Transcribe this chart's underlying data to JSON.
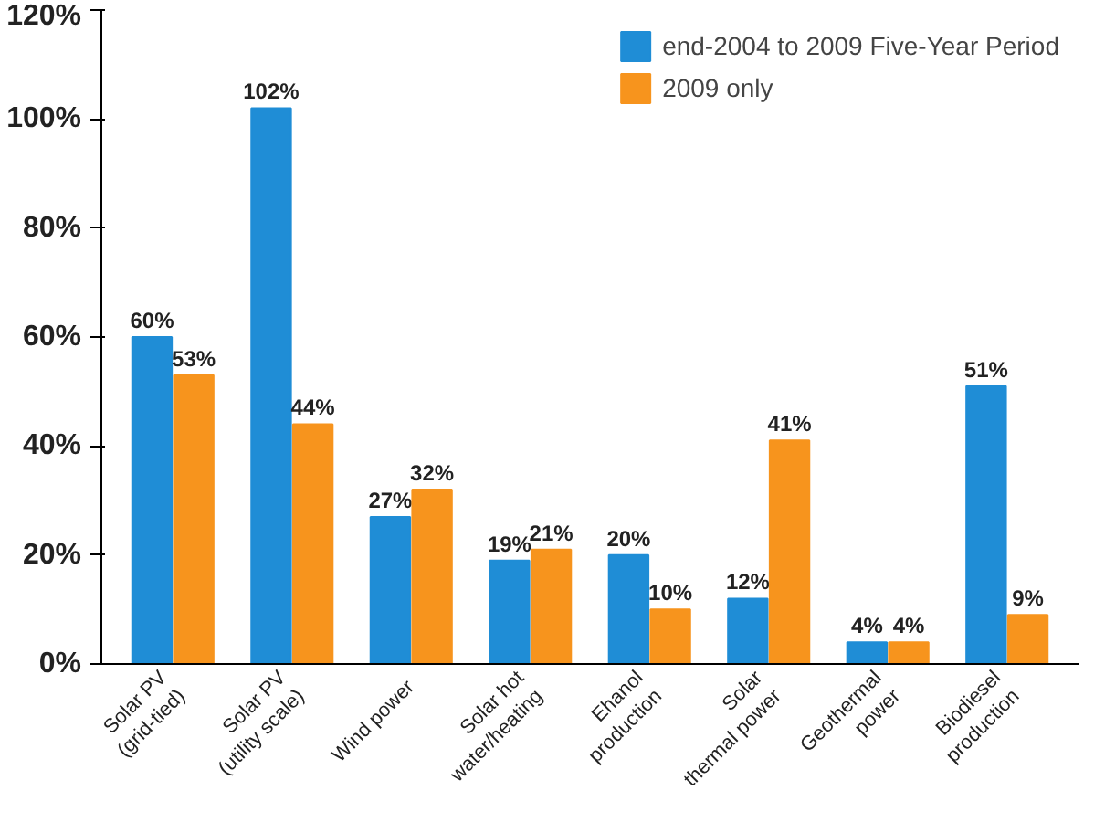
{
  "chart_data": {
    "type": "bar",
    "categories": [
      "Solar PV\n(grid-tied)",
      "Solar PV\n(utility scale)",
      "Wind power",
      "Solar hot\nwater/heating",
      "Ehanol\nproduction",
      "Solar\nthermal power",
      "Geothermal\npower",
      "Biodiesel\nproduction"
    ],
    "series": [
      {
        "name": "end-2004 to 2009 Five-Year Period",
        "color": "#1f8dd6",
        "values": [
          60,
          102,
          27,
          19,
          20,
          12,
          4,
          51
        ],
        "value_labels": [
          "60%",
          "102%",
          "27%",
          "19%",
          "20%",
          "12%",
          "4%",
          "51%"
        ]
      },
      {
        "name": "2009 only",
        "color": "#f7941d",
        "values": [
          53,
          44,
          32,
          21,
          10,
          41,
          4,
          9
        ],
        "value_labels": [
          "53%",
          "44%",
          "32%",
          "21%",
          "10%",
          "41%",
          "4%",
          "9%"
        ]
      }
    ],
    "ylim": [
      0,
      120
    ],
    "yticks": [
      {
        "value": 0,
        "label": "0%"
      },
      {
        "value": 20,
        "label": "20%"
      },
      {
        "value": 40,
        "label": "40%"
      },
      {
        "value": 60,
        "label": "60%"
      },
      {
        "value": 80,
        "label": "80%"
      },
      {
        "value": 100,
        "label": "100%"
      },
      {
        "value": 120,
        "label": "120%"
      }
    ],
    "legend": "top right",
    "grid": false
  }
}
